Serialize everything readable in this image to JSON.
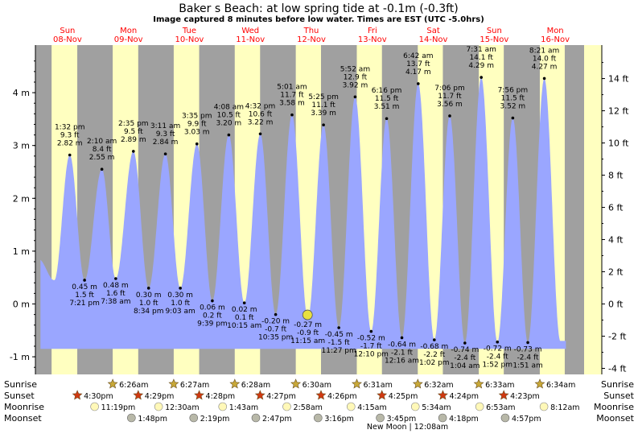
{
  "header": {
    "title": "Baker s Beach: at low  spring tide at -0.1m (-0.3ft)",
    "subtitle": "Image captured 8 minutes before low water. Times are EST (UTC -5.0hrs)"
  },
  "colors": {
    "day": "#ffffc0",
    "night": "#a0a0a0",
    "tide": "#9aa6ff",
    "date_text": "#ff0000",
    "sun_star": "#c8a838",
    "sunset_star": "#d03810",
    "moonrise": "#fff8b8",
    "moonset": "#b8b8a8",
    "now_marker": "#e8e040"
  },
  "chart_data": {
    "type": "area",
    "ylabel_left": "m",
    "ylabel_right": "ft",
    "ylim_m": [
      -1.3,
      4.9
    ],
    "left_ticks": [
      "4 m",
      "3 m",
      "2 m",
      "1 m",
      "0 m",
      "-1 m"
    ],
    "left_tick_values": [
      4,
      3,
      2,
      1,
      0,
      -1
    ],
    "right_ticks": [
      "14 ft",
      "12 ft",
      "10 ft",
      "8 ft",
      "6 ft",
      "4 ft",
      "2 ft",
      "0 ft",
      "-2 ft",
      "-4 ft"
    ],
    "right_tick_values": [
      14,
      12,
      10,
      8,
      6,
      4,
      2,
      0,
      -2,
      -4
    ],
    "days": [
      {
        "day": "Sun",
        "date": "08-Nov"
      },
      {
        "day": "Mon",
        "date": "09-Nov"
      },
      {
        "day": "Tue",
        "date": "10-Nov"
      },
      {
        "day": "Wed",
        "date": "11-Nov"
      },
      {
        "day": "Thu",
        "date": "12-Nov"
      },
      {
        "day": "Fri",
        "date": "13-Nov"
      },
      {
        "day": "Sat",
        "date": "14-Nov"
      },
      {
        "day": "Sun",
        "date": "15-Nov"
      },
      {
        "day": "Mon",
        "date": "16-Nov"
      }
    ],
    "extremes": [
      {
        "type": "high",
        "time": "1:32 pm",
        "ft": "9.3 ft",
        "m": 2.82,
        "m_label": "2.82 m",
        "hours": 13.53
      },
      {
        "type": "low",
        "time": "7:21 pm",
        "ft": "1.5 ft",
        "m": 0.45,
        "m_label": "0.45 m",
        "hours": 19.35
      },
      {
        "type": "high",
        "time": "2:10 am",
        "ft": "8.4 ft",
        "m": 2.55,
        "m_label": "2.55 m",
        "hours": 26.17
      },
      {
        "type": "low",
        "time": "7:38 am",
        "ft": "1.6 ft",
        "m": 0.48,
        "m_label": "0.48 m",
        "hours": 31.63
      },
      {
        "type": "high",
        "time": "2:35 pm",
        "ft": "9.5 ft",
        "m": 2.89,
        "m_label": "2.89 m",
        "hours": 38.58
      },
      {
        "type": "low",
        "time": "8:34 pm",
        "ft": "1.0 ft",
        "m": 0.3,
        "m_label": "0.30 m",
        "hours": 44.57
      },
      {
        "type": "high",
        "time": "3:11 am",
        "ft": "9.3 ft",
        "m": 2.84,
        "m_label": "2.84 m",
        "hours": 51.18
      },
      {
        "type": "low",
        "time": "9:03 am",
        "ft": "1.0 ft",
        "m": 0.3,
        "m_label": "0.30 m",
        "hours": 57.05
      },
      {
        "type": "high",
        "time": "3:35 pm",
        "ft": "9.9 ft",
        "m": 3.03,
        "m_label": "3.03 m",
        "hours": 63.58
      },
      {
        "type": "low",
        "time": "9:39 pm",
        "ft": "0.2 ft",
        "m": 0.06,
        "m_label": "0.06 m",
        "hours": 69.65
      },
      {
        "type": "high",
        "time": "4:08 am",
        "ft": "10.5 ft",
        "m": 3.2,
        "m_label": "3.20 m",
        "hours": 76.13
      },
      {
        "type": "low",
        "time": "10:15 am",
        "ft": "0.1 ft",
        "m": 0.02,
        "m_label": "0.02 m",
        "hours": 82.25
      },
      {
        "type": "high",
        "time": "4:32 pm",
        "ft": "10.6 ft",
        "m": 3.22,
        "m_label": "3.22 m",
        "hours": 88.53
      },
      {
        "type": "low",
        "time": "10:35 pm",
        "ft": "-0.7 ft",
        "m": -0.2,
        "m_label": "-0.20 m",
        "hours": 94.58
      },
      {
        "type": "high",
        "time": "5:01 am",
        "ft": "11.7 ft",
        "m": 3.58,
        "m_label": "3.58 m",
        "hours": 101.02
      },
      {
        "type": "low",
        "time": "11:15 am",
        "ft": "-0.9 ft",
        "m": -0.27,
        "m_label": "-0.27 m",
        "hours": 107.25
      },
      {
        "type": "high",
        "time": "5:25 pm",
        "ft": "11.1 ft",
        "m": 3.39,
        "m_label": "3.39 m",
        "hours": 113.42
      },
      {
        "type": "low",
        "time": "11:27 pm",
        "ft": "-1.5 ft",
        "m": -0.45,
        "m_label": "-0.45 m",
        "hours": 119.45
      },
      {
        "type": "high",
        "time": "5:52 am",
        "ft": "12.9 ft",
        "m": 3.92,
        "m_label": "3.92 m",
        "hours": 125.87
      },
      {
        "type": "low",
        "time": "12:10 pm",
        "ft": "-1.7 ft",
        "m": -0.52,
        "m_label": "-0.52 m",
        "hours": 132.17
      },
      {
        "type": "high",
        "time": "6:16 pm",
        "ft": "11.5 ft",
        "m": 3.51,
        "m_label": "3.51 m",
        "hours": 138.27
      },
      {
        "type": "low",
        "time": "12:16 am",
        "ft": "-2.1 ft",
        "m": -0.64,
        "m_label": "-0.64 m",
        "hours": 144.27
      },
      {
        "type": "high",
        "time": "6:42 am",
        "ft": "13.7 ft",
        "m": 4.17,
        "m_label": "4.17 m",
        "hours": 150.7
      },
      {
        "type": "low",
        "time": "1:02 pm",
        "ft": "-2.2 ft",
        "m": -0.68,
        "m_label": "-0.68 m",
        "hours": 157.03
      },
      {
        "type": "high",
        "time": "7:06 pm",
        "ft": "11.7 ft",
        "m": 3.56,
        "m_label": "3.56 m",
        "hours": 163.1
      },
      {
        "type": "low",
        "time": "1:04 am",
        "ft": "-2.4 ft",
        "m": -0.74,
        "m_label": "-0.74 m",
        "hours": 169.07
      },
      {
        "type": "high",
        "time": "7:31 am",
        "ft": "14.1 ft",
        "m": 4.29,
        "m_label": "4.29 m",
        "hours": 175.52
      },
      {
        "type": "low",
        "time": "1:52 pm",
        "ft": "-2.4 ft",
        "m": -0.72,
        "m_label": "-0.72 m",
        "hours": 181.87
      },
      {
        "type": "high",
        "time": "7:56 pm",
        "ft": "11.5 ft",
        "m": 3.52,
        "m_label": "3.52 m",
        "hours": 187.93
      },
      {
        "type": "low",
        "time": "1:51 am",
        "ft": "-2.4 ft",
        "m": -0.73,
        "m_label": "-0.73 m",
        "hours": 193.85
      },
      {
        "type": "high",
        "time": "8:21 am",
        "ft": "14.0 ft",
        "m": 4.27,
        "m_label": "4.27 m",
        "hours": 200.35
      }
    ],
    "now": {
      "hours": 107.12,
      "m": -0.1
    },
    "nights": [
      [
        0,
        6.37
      ],
      [
        16.48,
        30.43
      ],
      [
        40.48,
        54.45
      ],
      [
        64.47,
        78.47
      ],
      [
        88.45,
        102.5
      ],
      [
        112.43,
        126.52
      ],
      [
        136.42,
        150.53
      ],
      [
        160.4,
        174.55
      ],
      [
        184.38,
        198.57
      ],
      [
        208.38,
        216
      ]
    ]
  },
  "rows": {
    "labels_left": [
      "Sunrise",
      "Sunset",
      "Moonrise",
      "Moonset"
    ],
    "labels_right": [
      "Sunrise",
      "Sunset",
      "Moonrise",
      "Moonset"
    ],
    "sunrise": [
      {
        "time": "6:26am",
        "hours": 30.43
      },
      {
        "time": "6:27am",
        "hours": 54.45
      },
      {
        "time": "6:28am",
        "hours": 78.47
      },
      {
        "time": "6:30am",
        "hours": 102.5
      },
      {
        "time": "6:31am",
        "hours": 126.52
      },
      {
        "time": "6:32am",
        "hours": 150.53
      },
      {
        "time": "6:33am",
        "hours": 174.55
      },
      {
        "time": "6:34am",
        "hours": 198.57
      }
    ],
    "sunset": [
      {
        "time": "4:30pm",
        "hours": 16.5
      },
      {
        "time": "4:29pm",
        "hours": 40.48
      },
      {
        "time": "4:28pm",
        "hours": 64.47
      },
      {
        "time": "4:27pm",
        "hours": 88.45
      },
      {
        "time": "4:26pm",
        "hours": 112.43
      },
      {
        "time": "4:25pm",
        "hours": 136.42
      },
      {
        "time": "4:24pm",
        "hours": 160.4
      },
      {
        "time": "4:23pm",
        "hours": 184.38
      }
    ],
    "moonrise": [
      {
        "time": "11:19pm",
        "hours": 23.32
      },
      {
        "time": "12:30am",
        "hours": 48.5
      },
      {
        "time": "1:43am",
        "hours": 73.72
      },
      {
        "time": "2:58am",
        "hours": 98.97
      },
      {
        "time": "4:15am",
        "hours": 124.25
      },
      {
        "time": "5:34am",
        "hours": 149.57
      },
      {
        "time": "6:53am",
        "hours": 174.88
      },
      {
        "time": "8:12am",
        "hours": 200.2
      }
    ],
    "moonset": [
      {
        "time": "1:48pm",
        "hours": 37.8
      },
      {
        "time": "2:19pm",
        "hours": 62.32
      },
      {
        "time": "2:47pm",
        "hours": 86.78
      },
      {
        "time": "3:16pm",
        "hours": 111.27
      },
      {
        "time": "3:45pm",
        "hours": 135.75
      },
      {
        "time": "4:18pm",
        "hours": 160.3
      },
      {
        "time": "4:57pm",
        "hours": 184.95
      }
    ],
    "moon_phase": "New Moon | 12:08am"
  }
}
